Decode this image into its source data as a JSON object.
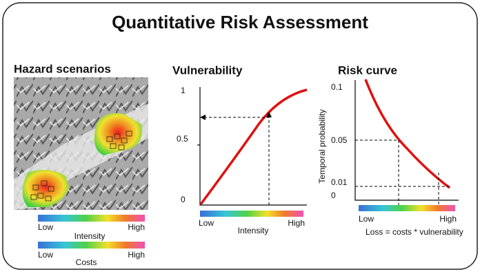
{
  "title": "Quantitative Risk Assessment",
  "hazard": {
    "title": "Hazard scenarios",
    "intensity_bar": {
      "low": "Low",
      "high": "High",
      "label": "Intensity"
    },
    "costs_bar": {
      "low": "Low",
      "high": "High",
      "label": "Costs"
    }
  },
  "vulnerability": {
    "title": "Vulnerability",
    "y_ticks": [
      "1",
      "0.5",
      "0"
    ],
    "x_bar": {
      "low": "Low",
      "high": "High",
      "label": "Intensity"
    }
  },
  "risk": {
    "title": "Risk curve",
    "y_label": "Temporal probability",
    "y_ticks": [
      "0.1",
      "0.05",
      "0.01",
      "0"
    ],
    "x_bar": {
      "low": "Low",
      "high": "High",
      "label": "Loss = costs * vulnerability"
    }
  }
}
